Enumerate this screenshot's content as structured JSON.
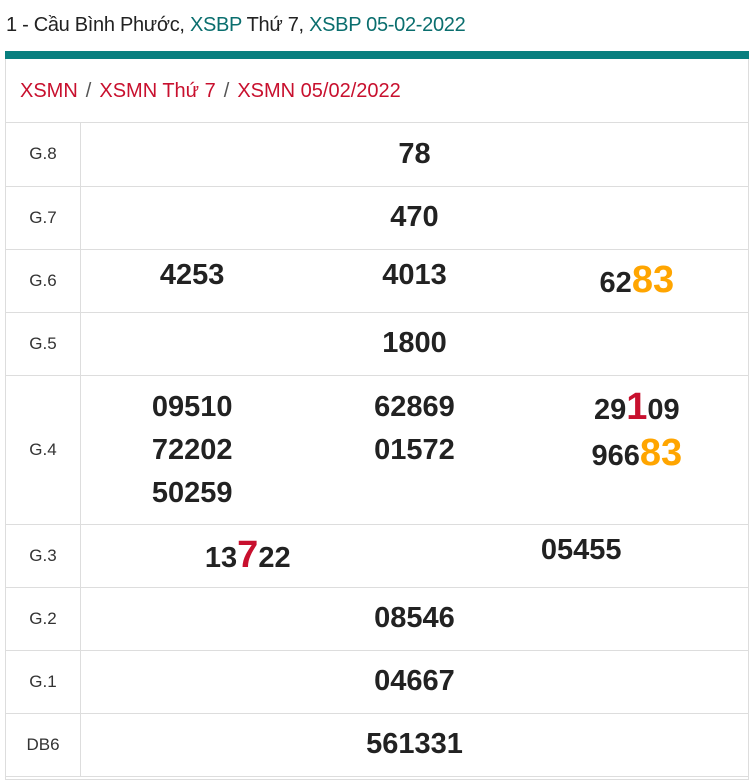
{
  "header": {
    "prefix": "1 - Cầu Bình Phước, ",
    "link1": "XSBP",
    "mid": " Thứ 7, ",
    "link2": "XSBP 05-02-2022"
  },
  "breadcrumb": [
    "XSMN",
    "XSMN Thứ 7",
    "XSMN 05/02/2022"
  ],
  "breadcrumb_sep": "/",
  "colors": {
    "accent": "#087f7f",
    "red": "#c8102e",
    "highlight": "#ffa500"
  },
  "prizes": {
    "g8": {
      "label": "G.8",
      "value": "78"
    },
    "g7": {
      "label": "G.7",
      "value": "470"
    },
    "g6": {
      "label": "G.6",
      "values": [
        "4253",
        "4013",
        "6283"
      ],
      "third_parts": [
        "62",
        "83"
      ]
    },
    "g5": {
      "label": "G.5",
      "value": "1800"
    },
    "g4": {
      "label": "G.4",
      "values": [
        "09510",
        "72202",
        "50259",
        "62869",
        "01572",
        "29109",
        "96683"
      ],
      "p6": [
        "29",
        "1",
        "09"
      ],
      "p7": [
        "966",
        "83"
      ]
    },
    "g3": {
      "label": "G.3",
      "values": [
        "13722",
        "05455"
      ],
      "p1": [
        "13",
        "7",
        "22"
      ]
    },
    "g2": {
      "label": "G.2",
      "value": "08546"
    },
    "g1": {
      "label": "G.1",
      "value": "04667"
    },
    "db": {
      "label": "DB6",
      "value": "561331"
    }
  }
}
